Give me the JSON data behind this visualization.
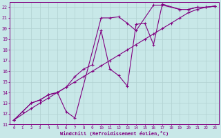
{
  "xlabel": "Windchill (Refroidissement éolien,°C)",
  "ylabel": "",
  "xlim": [
    -0.5,
    23.5
  ],
  "ylim": [
    11,
    22.5
  ],
  "xticks": [
    0,
    1,
    2,
    3,
    4,
    5,
    6,
    7,
    8,
    9,
    10,
    11,
    12,
    13,
    14,
    15,
    16,
    17,
    18,
    19,
    20,
    21,
    22,
    23
  ],
  "yticks": [
    11,
    12,
    13,
    14,
    15,
    16,
    17,
    18,
    19,
    20,
    21,
    22
  ],
  "background_color": "#c8e8e8",
  "line_color": "#800080",
  "grid_color": "#b0d0d0",
  "lines": [
    {
      "x": [
        0,
        1,
        2,
        3,
        4,
        5,
        6,
        7,
        10,
        11,
        12,
        13,
        14,
        16,
        17,
        19,
        20,
        21,
        22,
        23
      ],
      "y": [
        11.4,
        12.2,
        13.0,
        13.3,
        13.8,
        14.0,
        12.2,
        11.6,
        21.0,
        21.0,
        21.1,
        20.5,
        19.8,
        22.2,
        22.2,
        21.8,
        21.8,
        22.0,
        22.0,
        22.1
      ]
    },
    {
      "x": [
        0,
        1,
        2,
        3,
        4,
        5,
        6,
        7,
        8,
        9,
        10,
        11,
        12,
        13,
        14,
        15,
        16,
        17,
        19,
        20,
        21,
        22,
        23
      ],
      "y": [
        11.4,
        12.2,
        13.0,
        13.3,
        13.8,
        14.0,
        14.5,
        15.5,
        16.2,
        16.6,
        19.8,
        16.2,
        15.6,
        14.6,
        20.4,
        20.5,
        18.5,
        22.3,
        21.8,
        21.8,
        22.0,
        22.0,
        22.1
      ]
    },
    {
      "x": [
        0,
        2,
        3,
        4,
        5,
        6,
        7,
        8,
        9,
        10,
        11,
        12,
        13,
        14,
        15,
        16,
        17,
        18,
        19,
        20,
        21,
        22,
        23
      ],
      "y": [
        11.4,
        12.5,
        13.0,
        13.5,
        14.0,
        14.5,
        15.0,
        15.5,
        16.0,
        16.5,
        17.0,
        17.5,
        18.0,
        18.5,
        19.0,
        19.5,
        20.0,
        20.5,
        21.0,
        21.5,
        21.8,
        22.0,
        22.1
      ]
    }
  ]
}
